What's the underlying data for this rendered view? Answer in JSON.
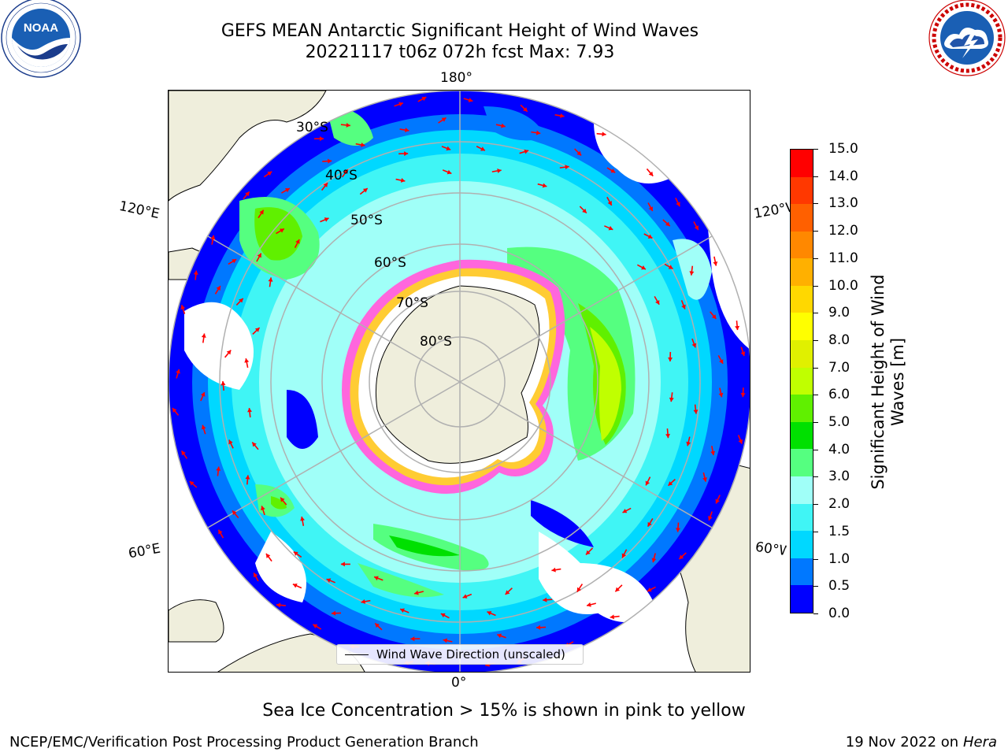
{
  "title": {
    "line1": "GEFS MEAN Antarctic Significant Height of Wind Waves",
    "line2": "20221117 t06z 072h fcst   Max: 7.93"
  },
  "logos": {
    "noaa": {
      "text": "NOAA",
      "ring_text": "NATIONAL OCEANIC AND ATMOSPHERIC ADMINISTRATION · U.S. DEPARTMENT OF COMMERCE"
    },
    "nws": {
      "ring_text": "NATIONAL WEATHER SERVICE"
    }
  },
  "map": {
    "projection": "south-polar-stereographic",
    "longitude_labels": {
      "top": "180°",
      "bottom": "0°",
      "left_upper": "120°E",
      "left_lower": "60°E",
      "right_upper": "120°W",
      "right_lower": "60°W"
    },
    "latitude_labels": [
      "30°S",
      "40°S",
      "50°S",
      "60°S",
      "70°S",
      "80°S"
    ],
    "legend": "Wind Wave Direction (unscaled)",
    "sea_ice_note": "Sea Ice Concentration > 15% is shown in pink to yellow",
    "colors": {
      "land": "#efeedc",
      "ice_pink": "#ff66dd",
      "ice_yellow": "#ffcc33",
      "arrow": "#ff0000",
      "grid": "#b0b0b0"
    }
  },
  "colorbar": {
    "label": "Significant Height of Wind Waves [m]",
    "label_line1": "Significant Height of Wind",
    "label_line2": "Waves [m]",
    "ticks": [
      "0.0",
      "0.5",
      "1.0",
      "1.5",
      "2.0",
      "3.0",
      "4.0",
      "5.0",
      "6.0",
      "7.0",
      "8.0",
      "9.0",
      "10.0",
      "11.0",
      "12.0",
      "13.0",
      "14.0",
      "15.0"
    ],
    "colors": [
      "#0000ff",
      "#0078ff",
      "#00d8ff",
      "#40f5f5",
      "#a0fff8",
      "#55ff80",
      "#00e000",
      "#60f000",
      "#c0ff00",
      "#e0f000",
      "#ffff00",
      "#ffd800",
      "#ffb000",
      "#ff8800",
      "#ff6000",
      "#ff3800",
      "#ff0000"
    ]
  },
  "footer": {
    "left": "NCEP/EMC/Verification Post Processing Product Generation Branch",
    "right_date": "19 Nov 2022 on",
    "right_host": "Hera"
  }
}
